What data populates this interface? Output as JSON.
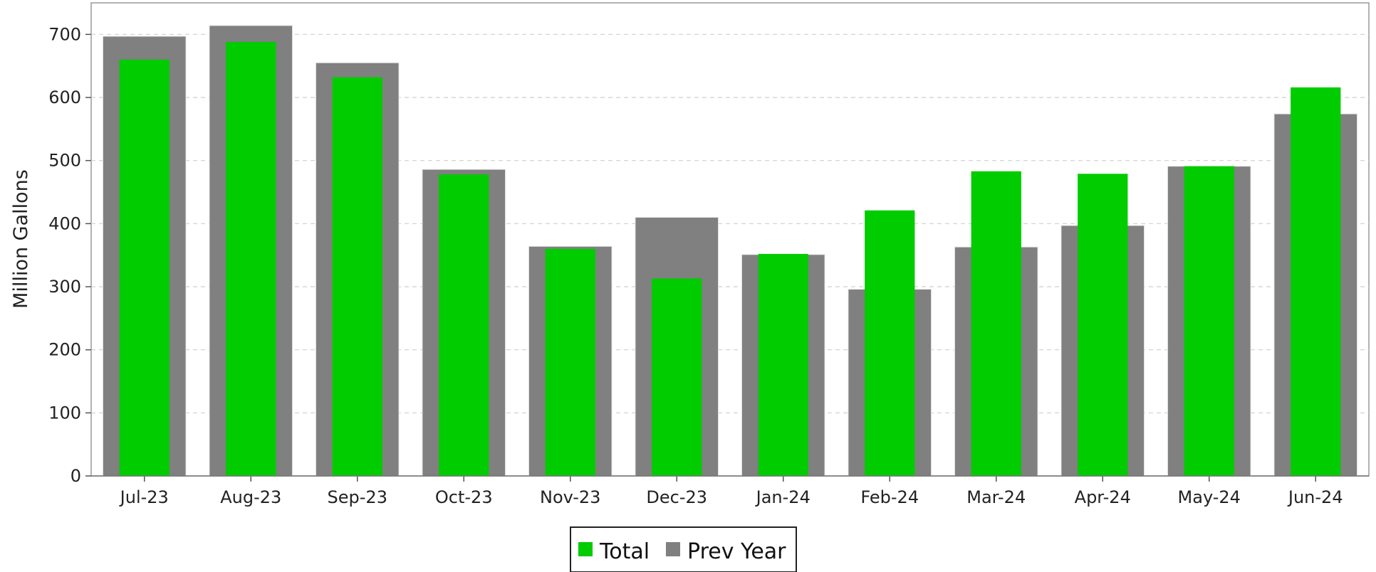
{
  "chart_data": {
    "type": "bar",
    "title": "",
    "xlabel": "",
    "ylabel": "Million Gallons",
    "ylim": [
      0,
      750
    ],
    "yticks": [
      0,
      100,
      200,
      300,
      400,
      500,
      600,
      700
    ],
    "grid": "horizontal dashed",
    "legend_position": "bottom-center",
    "categories": [
      "Jul-23",
      "Aug-23",
      "Sep-23",
      "Oct-23",
      "Nov-23",
      "Dec-23",
      "Jan-24",
      "Feb-24",
      "Mar-24",
      "Apr-24",
      "May-24",
      "Jun-24"
    ],
    "series": [
      {
        "name": "Total",
        "color": "#00cc00",
        "values": [
          660,
          688,
          632,
          478,
          360,
          313,
          352,
          421,
          483,
          479,
          491,
          616
        ]
      },
      {
        "name": "Prev Year",
        "color": "#808080",
        "values": [
          697,
          714,
          655,
          486,
          364,
          410,
          351,
          296,
          363,
          397,
          491,
          574
        ]
      }
    ]
  }
}
